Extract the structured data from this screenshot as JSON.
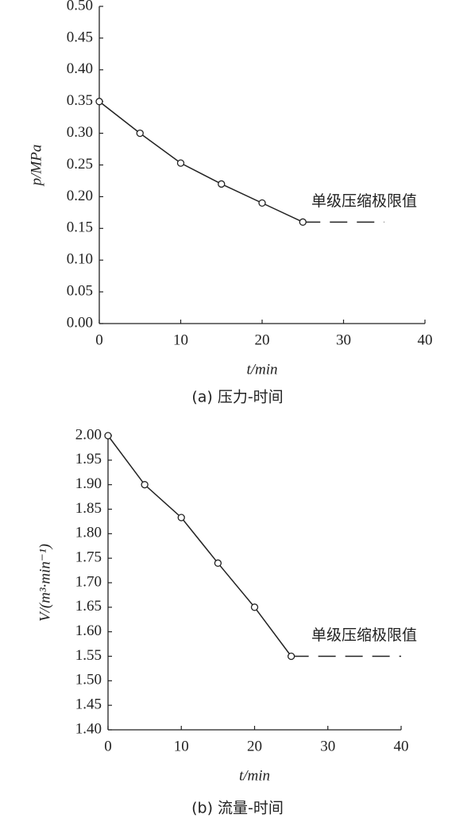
{
  "chart_data": [
    {
      "type": "line",
      "x": [
        0,
        5,
        10,
        15,
        20,
        25
      ],
      "values": [
        0.35,
        0.3,
        0.253,
        0.22,
        0.19,
        0.16
      ],
      "xlim": [
        0,
        40
      ],
      "xticks": [
        0,
        10,
        20,
        30,
        40
      ],
      "ylim": [
        0,
        0.5
      ],
      "yticks": [
        {
          "value": 0,
          "label": "0.00"
        },
        {
          "value": 0.05,
          "label": "0.05"
        },
        {
          "value": 0.1,
          "label": "0.10"
        },
        {
          "value": 0.15,
          "label": "0.15"
        },
        {
          "value": 0.2,
          "label": "0.20"
        },
        {
          "value": 0.25,
          "label": "0.25"
        },
        {
          "value": 0.3,
          "label": "0.30"
        },
        {
          "value": 0.35,
          "label": "0.35"
        },
        {
          "value": 0.4,
          "label": "0.40"
        },
        {
          "value": 0.45,
          "label": "0.45"
        },
        {
          "value": 0.5,
          "label": "0.50"
        }
      ],
      "y_label": "p/MPa",
      "x_label": "t/min",
      "caption": "(a) 压力-时间",
      "limit": {
        "label": "单级压缩极限值",
        "value": 0.16,
        "x": [
          25,
          35
        ]
      },
      "color": "#222222"
    },
    {
      "type": "line",
      "x": [
        0,
        5,
        10,
        15,
        20,
        25
      ],
      "values": [
        2.0,
        1.9,
        1.833,
        1.74,
        1.65,
        1.55
      ],
      "xlim": [
        0,
        40
      ],
      "xticks": [
        0,
        10,
        20,
        30,
        40
      ],
      "ylim": [
        1.4,
        2.0
      ],
      "yticks": [
        {
          "value": 1.4,
          "label": "1.40"
        },
        {
          "value": 1.45,
          "label": "1.45"
        },
        {
          "value": 1.5,
          "label": "1.50"
        },
        {
          "value": 1.55,
          "label": "1.55"
        },
        {
          "value": 1.6,
          "label": "1.60"
        },
        {
          "value": 1.65,
          "label": "1.65"
        },
        {
          "value": 1.7,
          "label": "1.70"
        },
        {
          "value": 1.75,
          "label": "1.75"
        },
        {
          "value": 1.8,
          "label": "1.80"
        },
        {
          "value": 1.85,
          "label": "1.85"
        },
        {
          "value": 1.9,
          "label": "1.90"
        },
        {
          "value": 1.95,
          "label": "1.95"
        },
        {
          "value": 2.0,
          "label": "2.00"
        }
      ],
      "y_label": "V/(m³·min⁻¹)",
      "x_label": "t/min",
      "caption": "(b) 流量-时间",
      "limit": {
        "label": "单级压缩极限值",
        "value": 1.55,
        "x": [
          25,
          40
        ]
      },
      "color": "#222222"
    }
  ]
}
